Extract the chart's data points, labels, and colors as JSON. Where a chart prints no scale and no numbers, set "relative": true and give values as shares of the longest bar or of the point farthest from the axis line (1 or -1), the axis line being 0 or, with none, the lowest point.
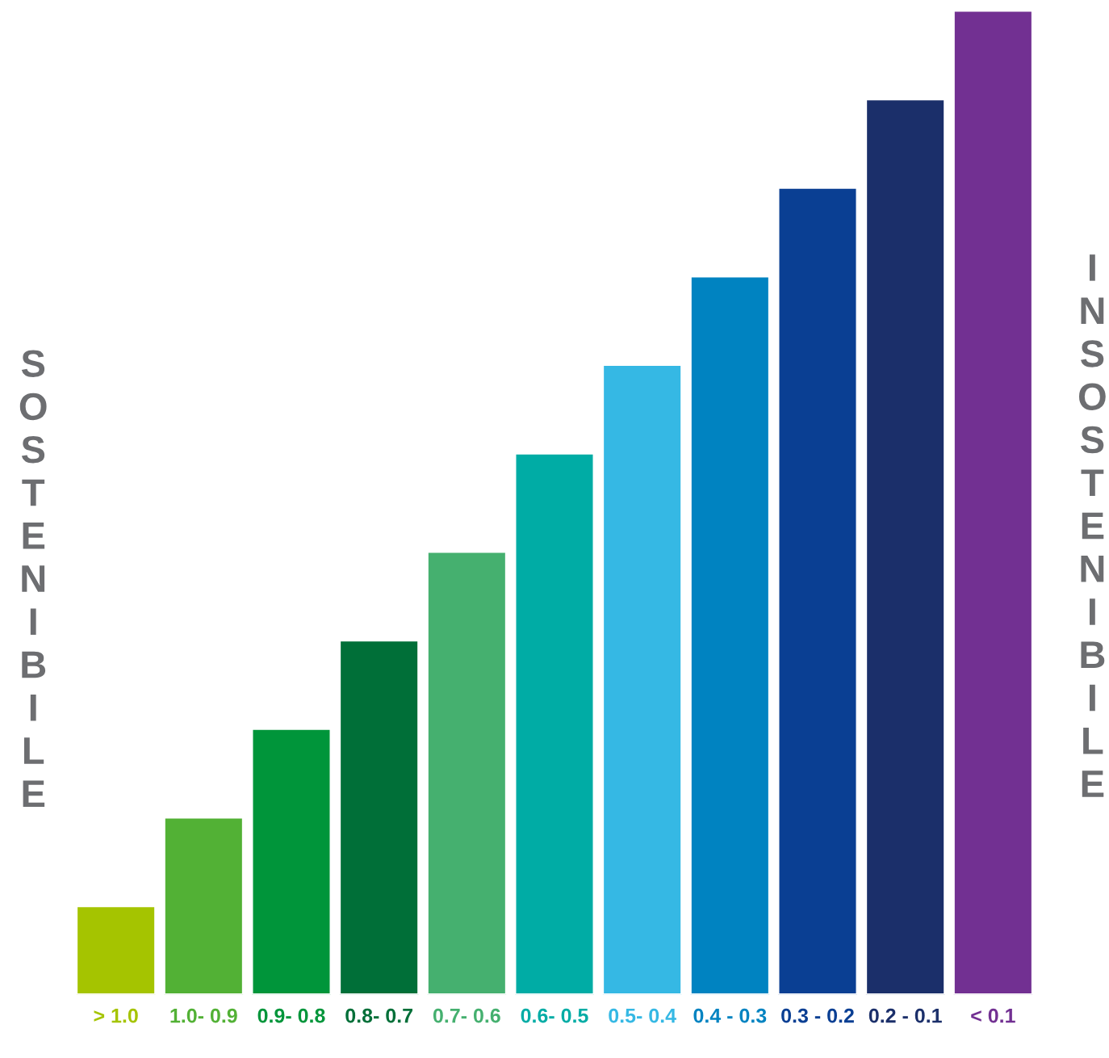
{
  "chart_data": {
    "type": "bar",
    "relative": true,
    "categories": [
      "> 1.0",
      "1.0- 0.9",
      "0.9- 0.8",
      "0.8- 0.7",
      "0.7- 0.6",
      "0.6- 0.5",
      "0.5- 0.4",
      "0.4 - 0.3",
      "0.3 - 0.2",
      "0.2 - 0.1",
      "< 0.1"
    ],
    "values": [
      0.09,
      0.18,
      0.27,
      0.36,
      0.45,
      0.55,
      0.64,
      0.73,
      0.82,
      0.91,
      1
    ],
    "colors": [
      "#a5c400",
      "#52b135",
      "#00953a",
      "#006f38",
      "#45b06f",
      "#00aca5",
      "#35b8e4",
      "#0083c1",
      "#0a3f93",
      "#1b2f6a",
      "#723092"
    ],
    "ylabel": "SOSTENIBILE",
    "y2label": "INSOSTENIBILE"
  }
}
